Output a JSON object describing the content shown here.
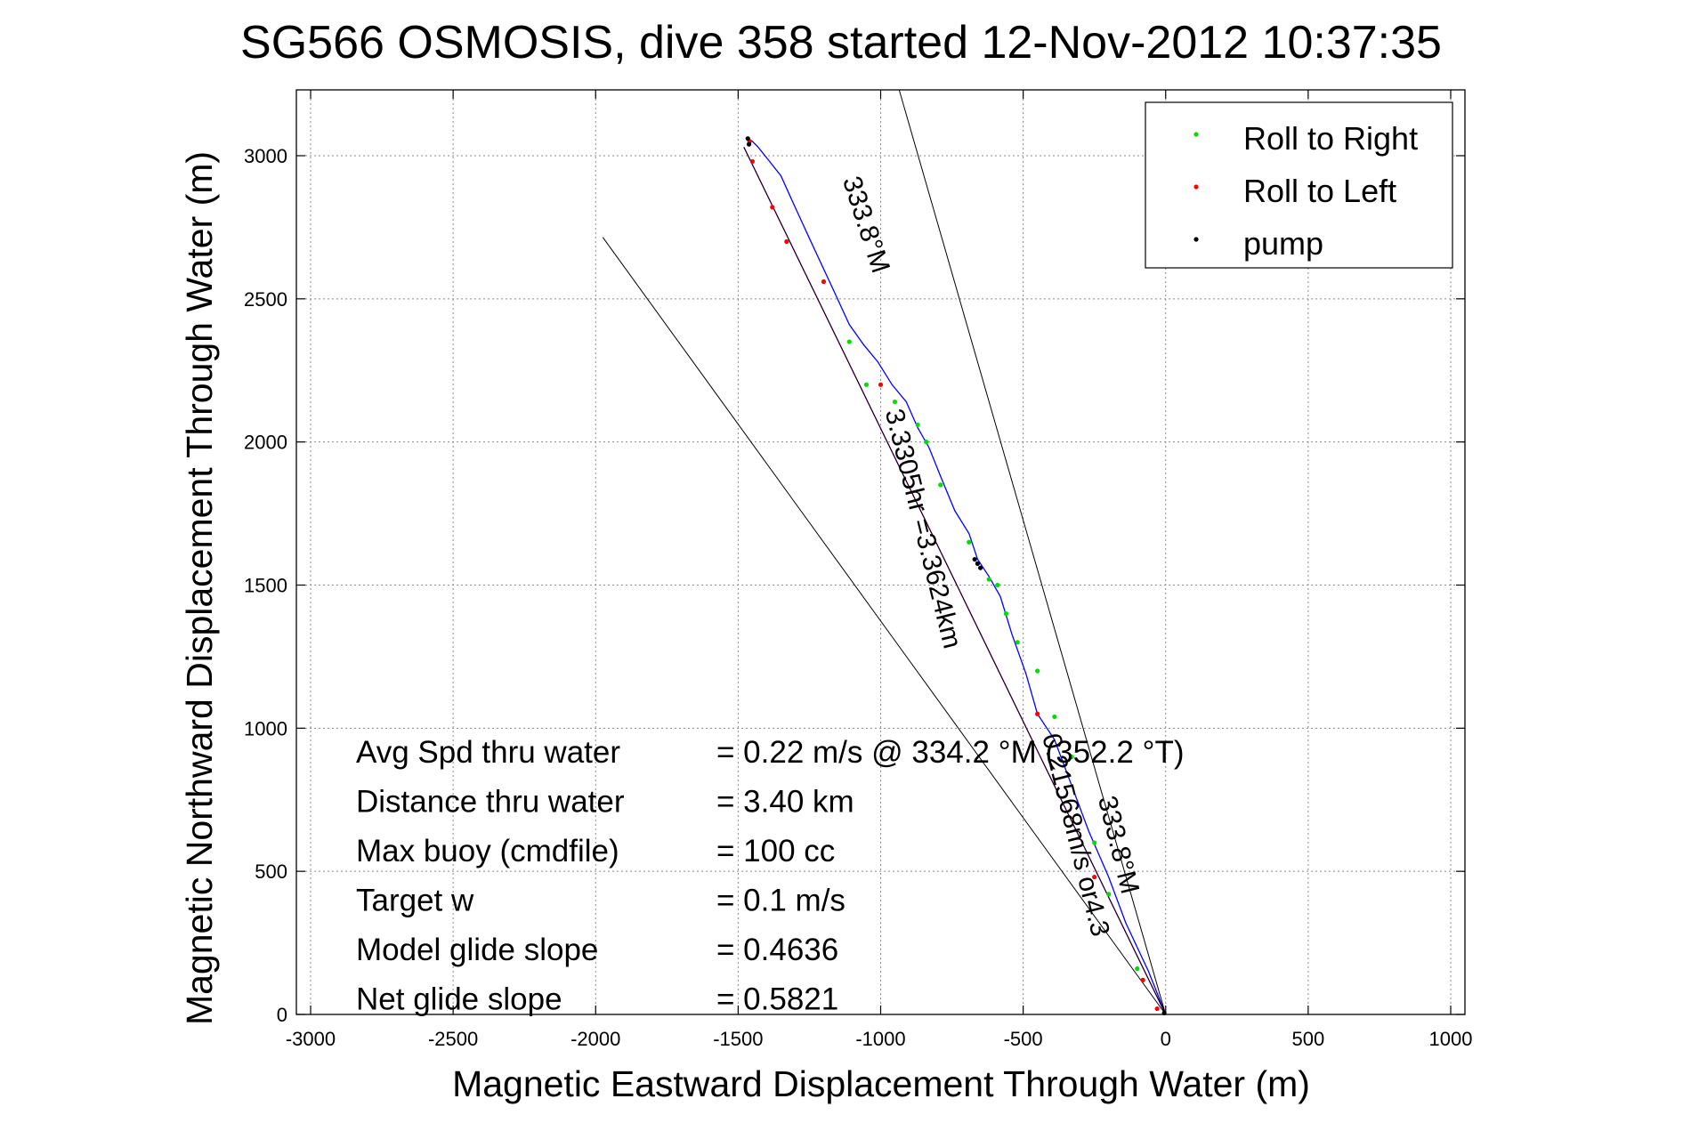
{
  "chart_data": {
    "type": "line",
    "title": "SG566 OSMOSIS, dive 358 started 12-Nov-2012 10:37:35",
    "xlabel": "Magnetic Eastward Displacement Through Water (m)",
    "ylabel": "Magnetic Northward Displacement Through Water (m)",
    "xlim": [
      -3050,
      1050
    ],
    "ylim": [
      0,
      3230
    ],
    "xticks": [
      -3000,
      -2500,
      -2000,
      -1500,
      -1000,
      -500,
      0,
      500,
      1000
    ],
    "yticks": [
      0,
      500,
      1000,
      1500,
      2000,
      2500,
      3000
    ],
    "grid": true,
    "legend": {
      "placement": "top-right",
      "entries": [
        {
          "label": "Roll to Right",
          "color": "#00dd00"
        },
        {
          "label": "Roll to Left",
          "color": "#ff0000"
        },
        {
          "label": "pump",
          "color": "#000000"
        }
      ]
    },
    "series": [
      {
        "kind": "track",
        "color": "#0000ff",
        "x": [
          0,
          -60,
          -140,
          -200,
          -270,
          -330,
          -390,
          -450,
          -490,
          -540,
          -580,
          -620,
          -660,
          -690,
          -740,
          -790,
          -830,
          -870,
          -910,
          -960,
          -1010,
          -1060,
          -1110,
          -1170,
          -1240,
          -1300,
          -1350,
          -1390,
          -1430,
          -1450,
          -1465
        ],
        "y": [
          0,
          150,
          320,
          480,
          640,
          800,
          960,
          1050,
          1190,
          1330,
          1460,
          1530,
          1590,
          1680,
          1760,
          1880,
          1980,
          2050,
          2140,
          2200,
          2280,
          2340,
          2410,
          2540,
          2690,
          2820,
          2930,
          2980,
          3030,
          3050,
          3060
        ]
      },
      {
        "kind": "ground-track",
        "color": "#cc00cc",
        "x": [
          0,
          -1480
        ],
        "y": [
          0,
          3030
        ]
      },
      {
        "kind": "reference-line",
        "color": "#000000",
        "x": [
          0,
          -1975
        ],
        "y": [
          0,
          2715
        ]
      },
      {
        "kind": "reference-line",
        "color": "#000000",
        "x": [
          0,
          -935
        ],
        "y": [
          0,
          3230
        ]
      },
      {
        "kind": "reference-line",
        "color": "#000000",
        "x": [
          0,
          -1480
        ],
        "y": [
          0,
          3030
        ]
      },
      {
        "kind": "roll-right",
        "color": "#00dd00",
        "x": [
          -100,
          -200,
          -250,
          -330,
          -390,
          -450,
          -520,
          -560,
          -590,
          -620,
          -690,
          -790,
          -840,
          -870,
          -950,
          -1050,
          -1110
        ],
        "y": [
          160,
          420,
          600,
          900,
          1040,
          1200,
          1300,
          1400,
          1500,
          1520,
          1650,
          1850,
          2000,
          2060,
          2140,
          2200,
          2350
        ]
      },
      {
        "kind": "roll-left",
        "color": "#ff0000",
        "x": [
          -30,
          -80,
          -250,
          -450,
          -1000,
          -1200,
          -1330,
          -1380,
          -1450,
          -1460
        ],
        "y": [
          20,
          120,
          480,
          1050,
          2200,
          2560,
          2700,
          2820,
          2980,
          3050
        ]
      },
      {
        "kind": "pump",
        "color": "#000000",
        "x": [
          -5,
          -650,
          -660,
          -670,
          -1462,
          -1466
        ],
        "y": [
          5,
          1560,
          1575,
          1590,
          3040,
          3060
        ]
      }
    ],
    "annotations": [
      {
        "text": "333.8°M",
        "x": -1080,
        "y": 2750,
        "rotation": 72
      },
      {
        "text": "3.3305hr =3.3624km",
        "x": -880,
        "y": 1690,
        "rotation": 76
      },
      {
        "text": "0.21568m/s or4.3",
        "x": -345,
        "y": 620,
        "rotation": 76
      },
      {
        "text": "333.8°M",
        "x": -195,
        "y": 585,
        "rotation": 76
      }
    ],
    "stats": [
      {
        "label": "Avg Spd thru water",
        "value": "=  0.22 m/s @ 334.2 °M (352.2 °T)"
      },
      {
        "label": "Distance thru water",
        "value": "=  3.40 km"
      },
      {
        "label": "Max buoy (cmdfile)",
        "value": "= 100 cc"
      },
      {
        "label": "Target w",
        "value": "= 0.1 m/s"
      },
      {
        "label": "Model glide slope",
        "value": "= 0.4636"
      },
      {
        "label": "Net glide slope",
        "value": "= 0.5821"
      }
    ]
  }
}
